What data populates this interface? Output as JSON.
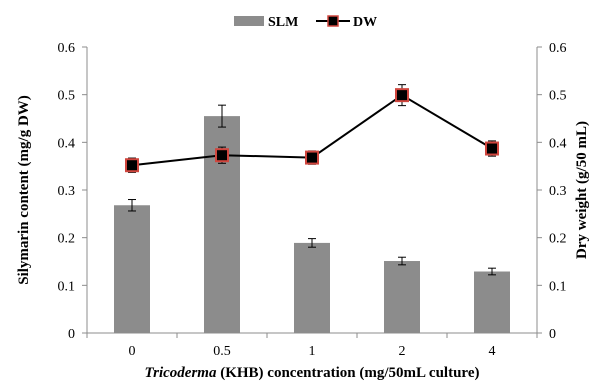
{
  "chart_data": {
    "type": "bar+line",
    "categories": [
      "0",
      "0.5",
      "1",
      "2",
      "4"
    ],
    "series": [
      {
        "name": "SLM",
        "type": "bar",
        "axis": "left",
        "values": [
          0.268,
          0.455,
          0.189,
          0.151,
          0.129
        ],
        "errors": [
          0.012,
          0.023,
          0.009,
          0.008,
          0.007
        ],
        "color": "#8c8c8c"
      },
      {
        "name": "DW",
        "type": "line",
        "axis": "right",
        "values": [
          0.352,
          0.373,
          0.368,
          0.499,
          0.387
        ],
        "errors": [
          0.015,
          0.017,
          0.014,
          0.022,
          0.016
        ],
        "color": "#000000",
        "marker_fill": "#000000",
        "marker_edge": "#d0463e"
      }
    ],
    "xlabel_italic": "Tricoderma",
    "xlabel_rest": " (KHB) concentration (mg/50mL culture)",
    "ylabel": "Silymarin content (mg/g DW)",
    "y2label": "Dry weight (g/50 mL)",
    "ylim": [
      0,
      0.6
    ],
    "y2lim": [
      0,
      0.6
    ],
    "yticks": [
      "0",
      "0.1",
      "0.2",
      "0.3",
      "0.4",
      "0.5",
      "0.6"
    ],
    "y2ticks": [
      "0",
      "0.1",
      "0.2",
      "0.3",
      "0.4",
      "0.5",
      "0.6"
    ],
    "legend_position": "top-center",
    "grid": false
  }
}
